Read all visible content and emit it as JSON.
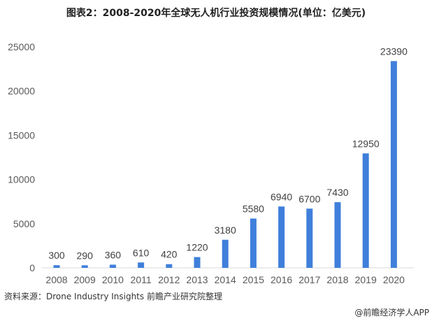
{
  "title": "图表2：2008-2020年全球无人机行业投资规模情况(单位：亿美元)",
  "source": "资料来源：Drone Industry Insights 前瞻产业研究院整理",
  "credit": "@前瞻经济学人APP",
  "chart_data": {
    "type": "bar",
    "title": "图表2：2008-2020年全球无人机行业投资规模情况(单位：亿美元)",
    "categories": [
      "2008",
      "2009",
      "2010",
      "2011",
      "2012",
      "2013",
      "2014",
      "2015",
      "2016",
      "2017",
      "2018",
      "2019",
      "2020"
    ],
    "values": [
      300,
      290,
      360,
      610,
      420,
      1220,
      3180,
      5580,
      6940,
      6700,
      7430,
      12950,
      23390
    ],
    "yticks": [
      0,
      5000,
      10000,
      15000,
      20000,
      25000
    ],
    "ylim": [
      0,
      25000
    ],
    "grid": false,
    "data_labels": true,
    "bar_color": "#3f7fdb"
  }
}
